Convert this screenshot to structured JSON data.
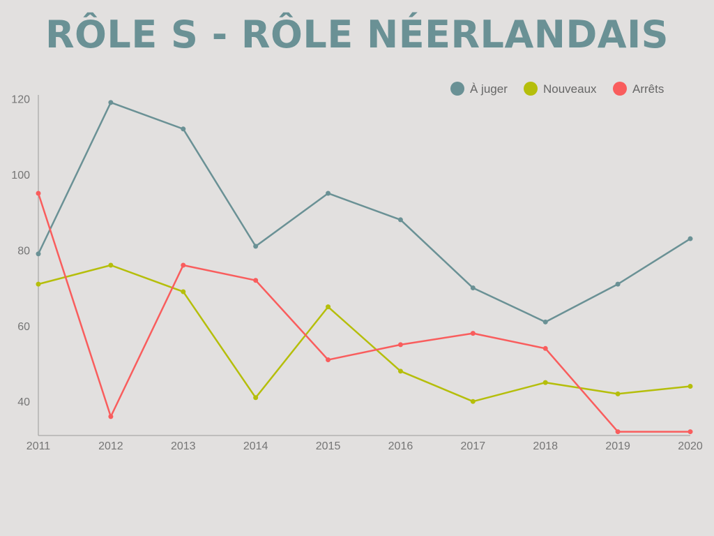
{
  "chart_data": {
    "type": "line",
    "title": "RÔLE S - RÔLE NÉERLANDAIS",
    "xlabel": "",
    "ylabel": "",
    "x": [
      "2011",
      "2012",
      "2013",
      "2014",
      "2015",
      "2016",
      "2017",
      "2018",
      "2019",
      "2020"
    ],
    "ylim": [
      31,
      121
    ],
    "yticks": [
      40,
      60,
      80,
      100,
      120
    ],
    "grid": false,
    "legend_position": "top-right",
    "series": [
      {
        "name": "À juger",
        "color": "#6a9195",
        "values": [
          79,
          119,
          112,
          81,
          95,
          88,
          70,
          61,
          71,
          83
        ]
      },
      {
        "name": "Nouveaux",
        "color": "#b5be0b",
        "values": [
          71,
          76,
          69,
          41,
          65,
          48,
          40,
          45,
          42,
          44
        ]
      },
      {
        "name": "Arrêts",
        "color": "#f95d5d",
        "values": [
          95,
          36,
          76,
          72,
          51,
          55,
          58,
          54,
          32,
          32
        ]
      }
    ]
  }
}
